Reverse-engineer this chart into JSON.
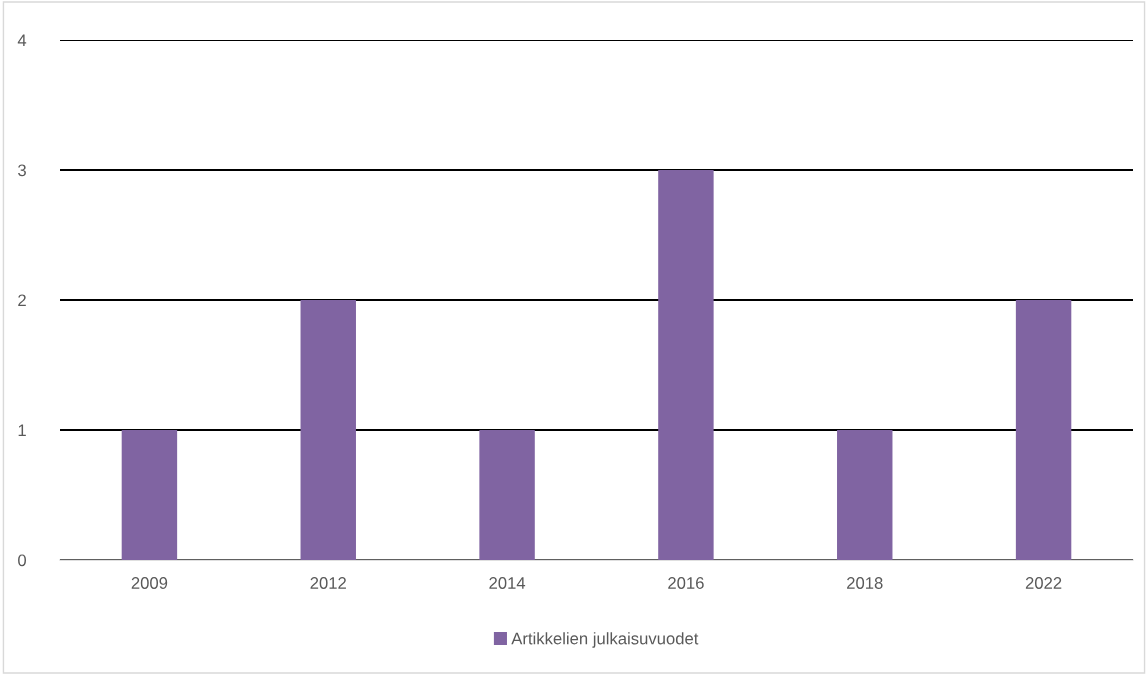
{
  "chart_data": {
    "type": "bar",
    "categories": [
      "2009",
      "2012",
      "2014",
      "2016",
      "2018",
      "2022"
    ],
    "series": [
      {
        "name": "Artikkelien julkaisuvuodet",
        "color": "#8064a2",
        "values": [
          1,
          2,
          1,
          3,
          1,
          2
        ]
      }
    ],
    "ylim": [
      0,
      4
    ],
    "yticks": [
      0,
      1,
      2,
      3,
      4
    ],
    "grid": "y",
    "legend": "bottom"
  }
}
